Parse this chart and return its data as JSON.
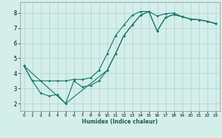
{
  "xlabel": "Humidex (Indice chaleur)",
  "bg_color": "#d4eeea",
  "grid_color": "#aed0cc",
  "line_color": "#1a7a6e",
  "xlim": [
    -0.5,
    23.5
  ],
  "ylim": [
    1.5,
    8.7
  ],
  "xticks": [
    0,
    1,
    2,
    3,
    4,
    5,
    6,
    7,
    8,
    9,
    10,
    11,
    12,
    13,
    14,
    15,
    16,
    17,
    18,
    19,
    20,
    21,
    22,
    23
  ],
  "yticks": [
    2,
    3,
    4,
    5,
    6,
    7,
    8
  ],
  "line1_x": [
    0,
    1,
    2,
    3,
    4,
    5,
    6,
    7,
    8,
    9,
    10,
    11,
    12,
    13,
    14,
    15,
    16,
    17,
    18,
    19,
    20,
    21,
    22,
    23
  ],
  "line1_y": [
    4.5,
    3.5,
    2.7,
    2.5,
    2.6,
    2.0,
    3.5,
    3.1,
    3.2,
    3.5,
    4.2,
    5.3,
    6.5,
    7.2,
    7.85,
    8.1,
    6.8,
    7.7,
    7.9,
    7.75,
    7.6,
    7.55,
    7.45,
    7.3
  ],
  "line2_x": [
    0,
    1,
    2,
    3,
    4,
    5,
    6,
    7,
    8,
    9,
    10,
    11,
    12,
    13,
    14,
    15,
    16,
    17,
    18,
    19,
    20,
    21,
    22,
    23
  ],
  "line2_y": [
    4.5,
    3.5,
    3.5,
    3.5,
    3.5,
    3.5,
    3.6,
    3.6,
    3.7,
    4.2,
    5.3,
    6.5,
    7.2,
    7.85,
    8.1,
    8.1,
    7.8,
    7.95,
    8.0,
    7.75,
    7.6,
    7.55,
    7.45,
    7.3
  ],
  "line3_x": [
    0,
    5,
    10,
    11,
    12,
    13,
    14,
    15,
    16,
    17,
    18,
    19,
    20,
    21,
    22,
    23
  ],
  "line3_y": [
    4.5,
    2.0,
    4.2,
    5.3,
    6.5,
    7.2,
    7.85,
    8.1,
    6.8,
    7.7,
    7.9,
    7.75,
    7.6,
    7.55,
    7.45,
    7.3
  ]
}
